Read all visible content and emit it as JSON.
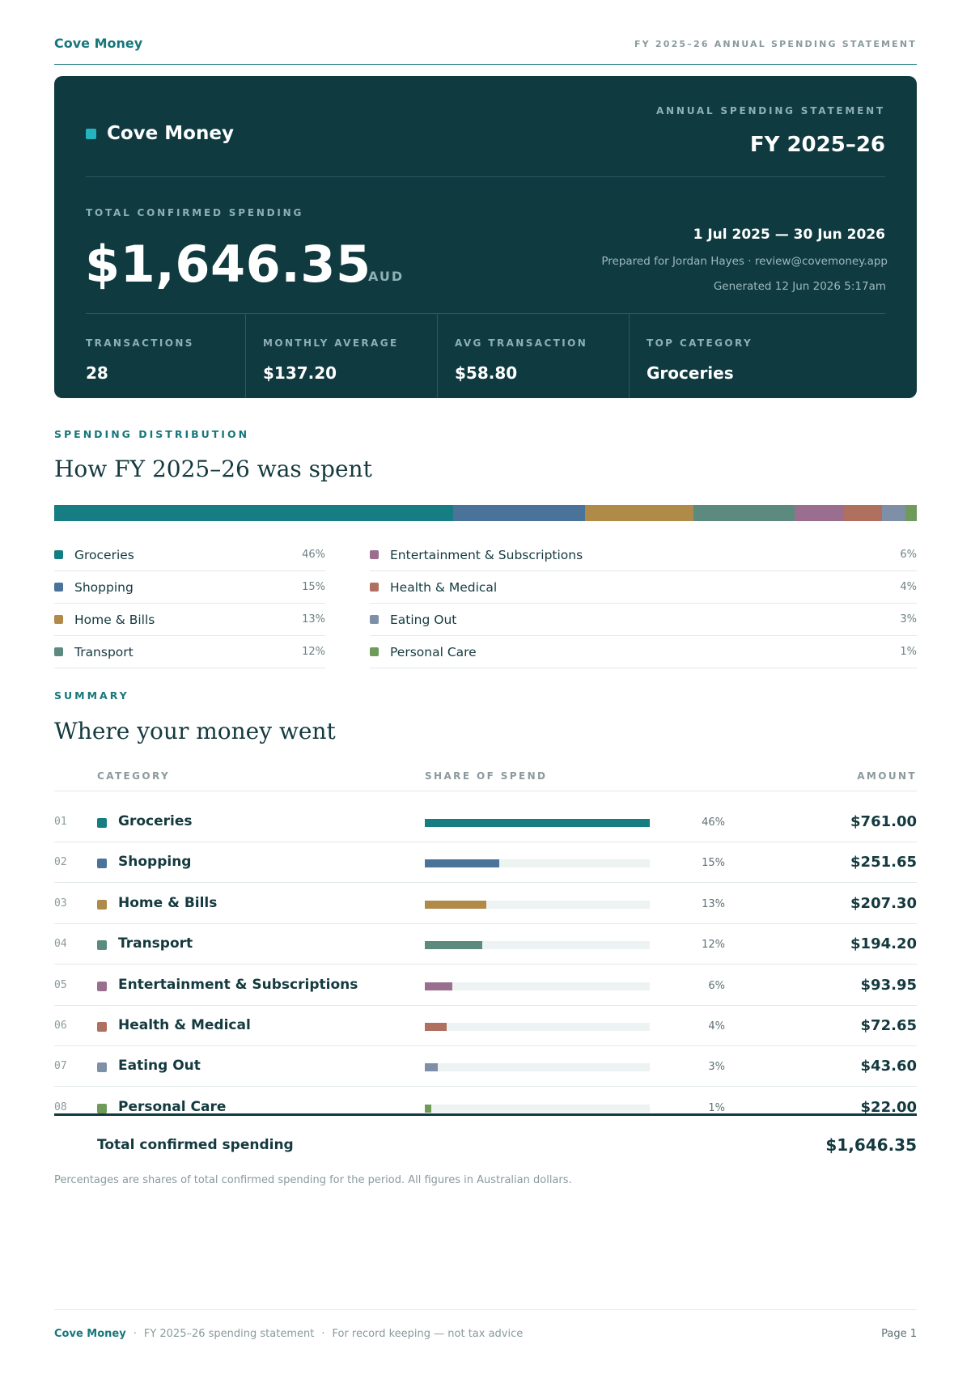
{
  "header": {
    "brand": "Cove Money",
    "doc_title": "FY 2025–26 ANNUAL SPENDING STATEMENT"
  },
  "hero": {
    "brand": "Cove Money",
    "kicker": "ANNUAL SPENDING STATEMENT",
    "fy": "FY 2025–26",
    "total_label": "TOTAL CONFIRMED SPENDING",
    "total_amount": "$1,646.35",
    "currency": "AUD",
    "period": "1 Jul 2025 — 30 Jun 2026",
    "prepared": "Prepared for Jordan Hayes · review@covemoney.app",
    "generated": "Generated 12 Jun 2026 5:17am",
    "stats": [
      {
        "label": "TRANSACTIONS",
        "value": "28"
      },
      {
        "label": "MONTHLY AVERAGE",
        "value": "$137.20"
      },
      {
        "label": "AVG TRANSACTION",
        "value": "$58.80"
      },
      {
        "label": "TOP CATEGORY",
        "value": "Groceries"
      }
    ]
  },
  "distribution": {
    "kicker": "SPENDING DISTRIBUTION",
    "title": "How FY 2025–26 was spent"
  },
  "categories": [
    {
      "index": "01",
      "name": "Groceries",
      "percent": "46%",
      "share": 46.22,
      "amount": "$761.00",
      "color": "#167d83"
    },
    {
      "index": "02",
      "name": "Shopping",
      "percent": "15%",
      "share": 15.29,
      "amount": "$251.65",
      "color": "#4a739a"
    },
    {
      "index": "03",
      "name": "Home & Bills",
      "percent": "13%",
      "share": 12.59,
      "amount": "$207.30",
      "color": "#b08a48"
    },
    {
      "index": "04",
      "name": "Transport",
      "percent": "12%",
      "share": 11.8,
      "amount": "$194.20",
      "color": "#5c8a7e"
    },
    {
      "index": "05",
      "name": "Entertainment & Subscriptions",
      "percent": "6%",
      "share": 5.71,
      "amount": "$93.95",
      "color": "#9a6e8e"
    },
    {
      "index": "06",
      "name": "Health & Medical",
      "percent": "4%",
      "share": 4.42,
      "amount": "$72.65",
      "color": "#b07060"
    },
    {
      "index": "07",
      "name": "Eating Out",
      "percent": "3%",
      "share": 2.65,
      "amount": "$43.60",
      "color": "#7f8fa8"
    },
    {
      "index": "08",
      "name": "Personal Care",
      "percent": "1%",
      "share": 1.34,
      "amount": "$22.00",
      "color": "#6e9a5a"
    }
  ],
  "summary": {
    "kicker": "SUMMARY",
    "title": "Where your money went",
    "col_category": "CATEGORY",
    "col_share": "SHARE OF SPEND",
    "col_amount": "AMOUNT",
    "total_label": "Total confirmed spending",
    "total_amount": "$1,646.35",
    "footnote": "Percentages are shares of total confirmed spending for the period. All figures in Australian dollars."
  },
  "footer": {
    "brand": "Cove Money",
    "doc": "FY 2025–26 spending statement",
    "note": "For record keeping — not tax advice",
    "page": "Page 1"
  }
}
